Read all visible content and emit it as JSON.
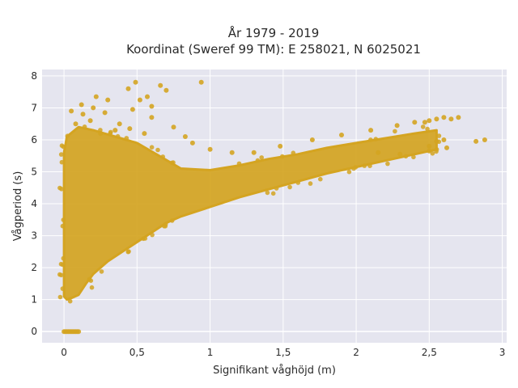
{
  "chart_data": {
    "type": "scatter",
    "title": "År 1979 - 2019",
    "subtitle": "Koordinat (Sweref 99 TM): E 258021, N 6025021",
    "xlabel": "Signifikant våghöjd (m)",
    "ylabel": "Vågperiod (s)",
    "xlim": [
      -0.15,
      3.03
    ],
    "ylim": [
      -0.35,
      8.2
    ],
    "x_ticks": [
      0,
      0.5,
      1,
      1.5,
      2,
      2.5,
      3
    ],
    "x_tick_labels": [
      "0",
      "0,5",
      "1",
      "1,5",
      "2",
      "2,5",
      "3"
    ],
    "y_ticks": [
      0,
      1,
      2,
      3,
      4,
      5,
      6,
      7,
      8
    ],
    "y_tick_labels": [
      "0",
      "1",
      "2",
      "3",
      "4",
      "5",
      "6",
      "7",
      "8"
    ],
    "grid": true,
    "colors": {
      "marker": "#d4a421",
      "plot_bg": "#e5e5ef",
      "grid": "#ffffff"
    },
    "density_points": [
      [
        0.0,
        1.1
      ],
      [
        0.02,
        1.0
      ],
      [
        0.05,
        1.05
      ],
      [
        0.1,
        1.15
      ],
      [
        0.15,
        1.5
      ],
      [
        0.2,
        1.8
      ],
      [
        0.3,
        2.2
      ],
      [
        0.4,
        2.5
      ],
      [
        0.5,
        2.8
      ],
      [
        0.6,
        3.1
      ],
      [
        0.7,
        3.4
      ],
      [
        0.8,
        3.6
      ],
      [
        1.0,
        3.9
      ],
      [
        1.2,
        4.2
      ],
      [
        1.4,
        4.45
      ],
      [
        1.6,
        4.7
      ],
      [
        1.8,
        4.95
      ],
      [
        2.0,
        5.15
      ],
      [
        2.2,
        5.35
      ],
      [
        2.4,
        5.55
      ],
      [
        2.55,
        5.7
      ],
      [
        2.55,
        6.3
      ],
      [
        2.4,
        6.2
      ],
      [
        2.2,
        6.05
      ],
      [
        2.0,
        5.9
      ],
      [
        1.8,
        5.75
      ],
      [
        1.6,
        5.55
      ],
      [
        1.4,
        5.4
      ],
      [
        1.2,
        5.2
      ],
      [
        1.0,
        5.05
      ],
      [
        0.8,
        5.1
      ],
      [
        0.65,
        5.5
      ],
      [
        0.5,
        5.9
      ],
      [
        0.35,
        6.1
      ],
      [
        0.2,
        6.3
      ],
      [
        0.1,
        6.4
      ],
      [
        0.02,
        6.1
      ],
      [
        0.0,
        5.6
      ]
    ],
    "outliers": [
      [
        0.05,
        6.9
      ],
      [
        0.08,
        6.5
      ],
      [
        0.12,
        7.1
      ],
      [
        0.13,
        6.8
      ],
      [
        0.18,
        6.6
      ],
      [
        0.2,
        7.0
      ],
      [
        0.22,
        7.35
      ],
      [
        0.28,
        6.85
      ],
      [
        0.3,
        7.25
      ],
      [
        0.38,
        6.5
      ],
      [
        0.44,
        7.6
      ],
      [
        0.47,
        6.95
      ],
      [
        0.49,
        7.8
      ],
      [
        0.52,
        7.25
      ],
      [
        0.57,
        7.35
      ],
      [
        0.6,
        7.05
      ],
      [
        0.66,
        7.7
      ],
      [
        0.7,
        7.55
      ],
      [
        0.75,
        6.4
      ],
      [
        0.83,
        6.1
      ],
      [
        0.88,
        5.9
      ],
      [
        0.94,
        7.8
      ],
      [
        1.0,
        5.7
      ],
      [
        1.15,
        5.6
      ],
      [
        1.3,
        5.6
      ],
      [
        1.48,
        5.8
      ],
      [
        1.7,
        6.0
      ],
      [
        1.9,
        6.15
      ],
      [
        2.1,
        6.3
      ],
      [
        2.28,
        6.45
      ],
      [
        2.4,
        6.55
      ],
      [
        2.47,
        6.55
      ],
      [
        2.5,
        6.6
      ],
      [
        2.55,
        6.65
      ],
      [
        2.6,
        6.7
      ],
      [
        2.65,
        6.65
      ],
      [
        2.7,
        6.7
      ],
      [
        2.55,
        5.95
      ],
      [
        2.6,
        6.0
      ],
      [
        2.5,
        5.8
      ],
      [
        2.62,
        5.75
      ],
      [
        2.82,
        5.95
      ],
      [
        2.88,
        6.0
      ],
      [
        2.5,
        5.65
      ],
      [
        2.3,
        5.55
      ],
      [
        2.15,
        5.6
      ],
      [
        0.45,
        6.35
      ],
      [
        0.55,
        6.2
      ],
      [
        0.6,
        6.7
      ],
      [
        0.25,
        6.2
      ],
      [
        0.35,
        6.3
      ]
    ],
    "zero_series": {
      "x_range": [
        0.0,
        0.1
      ],
      "y": 0
    }
  }
}
